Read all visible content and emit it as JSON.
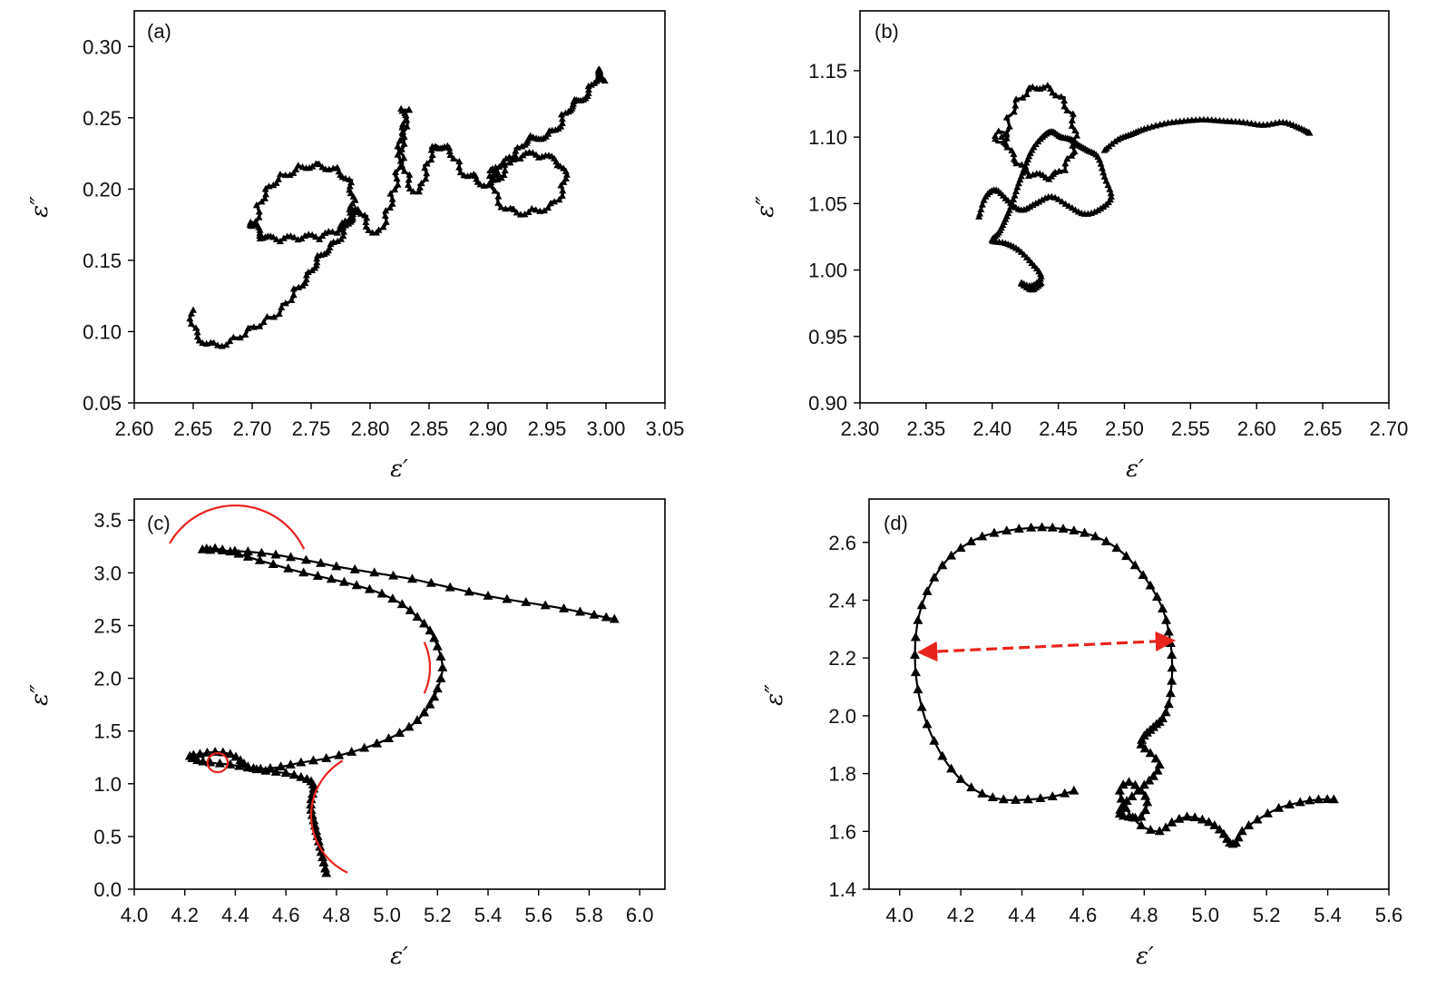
{
  "chart_data": [
    {
      "type": "scatter",
      "panel_label": "(a)",
      "xlabel": "ε′",
      "ylabel": "ε″",
      "xlim": [
        2.6,
        3.05
      ],
      "ylim": [
        0.05,
        0.325
      ],
      "xticks": [
        "2.60",
        "2.65",
        "2.70",
        "2.75",
        "2.80",
        "2.85",
        "2.90",
        "2.95",
        "3.00",
        "3.05"
      ],
      "yticks": [
        "0.05",
        "0.10",
        "0.15",
        "0.20",
        "0.25",
        "0.30"
      ],
      "grid": false,
      "marker": "triangle",
      "color": "#000000",
      "series": [
        {
          "style": "loops",
          "x": [
            2.65,
            2.655,
            2.665,
            2.68,
            2.7,
            2.72,
            2.735,
            2.745,
            2.752,
            2.76,
            2.77,
            2.778,
            2.782,
            2.79,
            2.798,
            2.805,
            2.812,
            2.818,
            2.822,
            2.826,
            2.83,
            2.832,
            2.828,
            2.834,
            2.84,
            2.845,
            2.852,
            2.86,
            2.87,
            2.88,
            2.89,
            2.9,
            2.91,
            2.92,
            2.93,
            2.94,
            2.95,
            2.958,
            2.965,
            2.972,
            2.978,
            2.985,
            2.99,
            2.995,
            3.002
          ],
          "y": [
            0.115,
            0.1,
            0.093,
            0.095,
            0.105,
            0.115,
            0.13,
            0.14,
            0.15,
            0.158,
            0.165,
            0.175,
            0.182,
            0.188,
            0.18,
            0.17,
            0.185,
            0.2,
            0.22,
            0.24,
            0.258,
            0.245,
            0.23,
            0.21,
            0.2,
            0.215,
            0.23,
            0.232,
            0.228,
            0.214,
            0.21,
            0.205,
            0.212,
            0.225,
            0.235,
            0.238,
            0.24,
            0.246,
            0.256,
            0.262,
            0.265,
            0.272,
            0.28,
            0.284,
            0.278
          ]
        },
        {
          "style": "loop",
          "x": [
            2.7,
            2.705,
            2.715,
            2.73,
            2.745,
            2.76,
            2.775,
            2.785,
            2.788,
            2.785,
            2.775,
            2.76,
            2.745,
            2.73,
            2.715,
            2.705,
            2.7
          ],
          "y": [
            0.175,
            0.192,
            0.205,
            0.213,
            0.218,
            0.218,
            0.214,
            0.205,
            0.192,
            0.18,
            0.17,
            0.165,
            0.164,
            0.163,
            0.163,
            0.166,
            0.175
          ]
        },
        {
          "style": "loop",
          "x": [
            2.905,
            2.912,
            2.925,
            2.94,
            2.955,
            2.962,
            2.96,
            2.95,
            2.938,
            2.925,
            2.912,
            2.905
          ],
          "y": [
            0.21,
            0.192,
            0.186,
            0.187,
            0.192,
            0.205,
            0.215,
            0.22,
            0.222,
            0.22,
            0.216,
            0.21
          ]
        }
      ]
    },
    {
      "type": "scatter",
      "panel_label": "(b)",
      "xlabel": "ε′",
      "ylabel": "ε″",
      "xlim": [
        2.3,
        2.7
      ],
      "ylim": [
        0.9,
        1.195
      ],
      "xticks": [
        "2.30",
        "2.35",
        "2.40",
        "2.45",
        "2.50",
        "2.55",
        "2.60",
        "2.65",
        "2.70"
      ],
      "yticks": [
        "0.90",
        "0.95",
        "1.00",
        "1.05",
        "1.10",
        "1.15"
      ],
      "grid": false,
      "marker": "triangle",
      "color": "#000000",
      "series": [
        {
          "style": "loop",
          "x": [
            2.407,
            2.415,
            2.43,
            2.445,
            2.458,
            2.465,
            2.462,
            2.45,
            2.438,
            2.425,
            2.413,
            2.407
          ],
          "y": [
            1.1,
            1.125,
            1.139,
            1.138,
            1.125,
            1.105,
            1.085,
            1.07,
            1.068,
            1.072,
            1.085,
            1.1
          ]
        },
        {
          "style": "line",
          "x": [
            2.39,
            2.395,
            2.403,
            2.412,
            2.422,
            2.433,
            2.445,
            2.458,
            2.47,
            2.482,
            2.49,
            2.485,
            2.48,
            2.472,
            2.465,
            2.46,
            2.452,
            2.445,
            2.438,
            2.43,
            2.425,
            2.42,
            2.415,
            2.41,
            2.405,
            2.4,
            2.41,
            2.42,
            2.43,
            2.437,
            2.43,
            2.422,
            2.43,
            2.437
          ],
          "y": [
            1.04,
            1.055,
            1.06,
            1.052,
            1.045,
            1.05,
            1.055,
            1.048,
            1.042,
            1.046,
            1.055,
            1.07,
            1.085,
            1.09,
            1.094,
            1.098,
            1.1,
            1.104,
            1.1,
            1.09,
            1.078,
            1.065,
            1.05,
            1.038,
            1.028,
            1.022,
            1.02,
            1.015,
            1.005,
            0.995,
            0.988,
            0.99,
            0.985,
            0.99
          ]
        },
        {
          "style": "line",
          "x": [
            2.485,
            2.495,
            2.505,
            2.515,
            2.53,
            2.545,
            2.56,
            2.575,
            2.59,
            2.605,
            2.62,
            2.632,
            2.64
          ],
          "y": [
            1.09,
            1.098,
            1.102,
            1.106,
            1.11,
            1.112,
            1.113,
            1.112,
            1.111,
            1.109,
            1.111,
            1.107,
            1.103
          ]
        }
      ]
    },
    {
      "type": "scatter",
      "panel_label": "(c)",
      "xlabel": "ε′",
      "ylabel": "ε″",
      "xlim": [
        4.0,
        6.1
      ],
      "ylim": [
        0.0,
        3.7
      ],
      "xticks": [
        "4.0",
        "4.2",
        "4.4",
        "4.6",
        "4.8",
        "5.0",
        "5.2",
        "5.4",
        "5.6",
        "5.8",
        "6.0"
      ],
      "yticks": [
        "0.0",
        "0.5",
        "1.0",
        "1.5",
        "2.0",
        "2.5",
        "3.0",
        "3.5"
      ],
      "grid": false,
      "marker": "triangle",
      "color": "#000000",
      "series": [
        {
          "style": "line",
          "x": [
            4.76,
            4.75,
            4.74,
            4.73,
            4.72,
            4.71,
            4.7,
            4.7,
            4.71,
            4.7,
            4.66,
            4.6,
            4.52,
            4.45,
            4.38,
            4.3,
            4.25,
            4.22,
            4.26,
            4.32,
            4.38,
            4.42,
            4.45,
            4.5,
            4.58,
            4.66,
            4.76,
            4.86,
            4.96,
            5.05,
            5.12,
            5.17,
            5.2,
            5.22,
            5.2,
            5.17,
            5.12,
            5.06,
            4.98,
            4.88,
            4.78,
            4.67,
            4.55,
            4.45,
            4.38,
            4.32,
            4.27,
            4.35,
            4.45,
            4.56,
            4.68,
            4.8,
            4.95,
            5.1,
            5.25,
            5.4,
            5.55,
            5.7,
            5.82,
            5.9
          ],
          "y": [
            0.15,
            0.25,
            0.35,
            0.45,
            0.55,
            0.65,
            0.75,
            0.85,
            0.95,
            1.02,
            1.06,
            1.1,
            1.12,
            1.15,
            1.18,
            1.2,
            1.22,
            1.26,
            1.28,
            1.3,
            1.28,
            1.22,
            1.16,
            1.14,
            1.16,
            1.2,
            1.24,
            1.3,
            1.38,
            1.48,
            1.6,
            1.75,
            1.9,
            2.1,
            2.3,
            2.45,
            2.58,
            2.7,
            2.8,
            2.88,
            2.94,
            3.0,
            3.08,
            3.15,
            3.2,
            3.23,
            3.22,
            3.21,
            3.2,
            3.17,
            3.12,
            3.06,
            3.0,
            2.94,
            2.86,
            2.78,
            2.72,
            2.66,
            2.6,
            2.56
          ]
        }
      ],
      "annotations": [
        {
          "shape": "arc",
          "color": "#e8231d",
          "cx": 4.4,
          "cy": 2.92,
          "r": 0.3,
          "from_deg": 150,
          "to_deg": 25
        },
        {
          "shape": "arc",
          "color": "#e8231d",
          "cx": 4.93,
          "cy": 2.1,
          "r": 0.24,
          "from_deg": -25,
          "to_deg": 25
        },
        {
          "shape": "arc",
          "color": "#e8231d",
          "cx": 4.95,
          "cy": 0.7,
          "r": 0.25,
          "from_deg": 120,
          "to_deg": 245
        },
        {
          "shape": "ellipse",
          "color": "#e8231d",
          "cx": 4.33,
          "cy": 1.2,
          "rx": 0.04,
          "ry": 0.09
        }
      ]
    },
    {
      "type": "scatter",
      "panel_label": "(d)",
      "xlabel": "ε′",
      "ylabel": "ε″",
      "xlim": [
        3.9,
        5.6
      ],
      "ylim": [
        1.4,
        2.75
      ],
      "xticks": [
        "4.0",
        "4.2",
        "4.4",
        "4.6",
        "4.8",
        "5.0",
        "5.2",
        "5.4",
        "5.6"
      ],
      "yticks": [
        "1.4",
        "1.6",
        "1.8",
        "2.0",
        "2.2",
        "2.4",
        "2.6"
      ],
      "grid": false,
      "marker": "triangle",
      "color": "#000000",
      "series": [
        {
          "style": "line",
          "x": [
            4.57,
            4.5,
            4.42,
            4.34,
            4.27,
            4.2,
            4.14,
            4.09,
            4.06,
            4.05,
            4.06,
            4.09,
            4.14,
            4.2,
            4.27,
            4.35,
            4.43,
            4.5,
            4.57,
            4.64,
            4.71,
            4.77,
            4.82,
            4.86,
            4.88,
            4.89,
            4.89,
            4.88,
            4.86,
            4.84,
            4.82,
            4.8,
            4.79,
            4.82,
            4.85,
            4.83,
            4.8,
            4.76,
            4.73,
            4.72,
            4.75,
            4.79,
            4.81,
            4.79,
            4.75,
            4.72,
            4.74,
            4.79,
            4.85,
            4.89,
            4.94,
            4.99,
            5.03,
            5.06,
            5.08,
            5.1,
            5.12,
            5.17,
            5.24,
            5.31,
            5.37,
            5.42
          ],
          "y": [
            1.74,
            1.72,
            1.71,
            1.71,
            1.73,
            1.78,
            1.86,
            1.97,
            2.09,
            2.21,
            2.33,
            2.43,
            2.52,
            2.58,
            2.62,
            2.64,
            2.65,
            2.65,
            2.64,
            2.62,
            2.58,
            2.52,
            2.45,
            2.37,
            2.29,
            2.21,
            2.12,
            2.04,
            1.99,
            1.97,
            1.95,
            1.93,
            1.9,
            1.87,
            1.83,
            1.79,
            1.76,
            1.72,
            1.69,
            1.66,
            1.65,
            1.65,
            1.7,
            1.74,
            1.77,
            1.74,
            1.68,
            1.62,
            1.6,
            1.63,
            1.65,
            1.64,
            1.62,
            1.59,
            1.56,
            1.56,
            1.6,
            1.64,
            1.68,
            1.7,
            1.71,
            1.71
          ]
        }
      ],
      "annotations": [
        {
          "shape": "double-arrow",
          "style": "dashed",
          "color": "#e8231d",
          "x1": 4.07,
          "y1": 2.22,
          "x2": 4.89,
          "y2": 2.26
        }
      ]
    }
  ]
}
